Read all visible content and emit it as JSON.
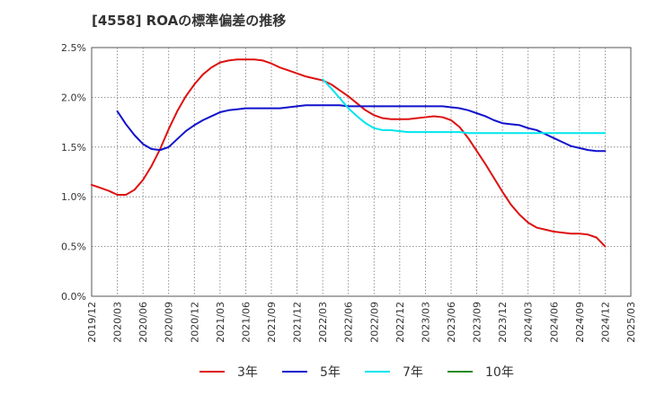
{
  "chart_data": {
    "type": "line",
    "title": "[4558]  ROAの標準偏差の推移",
    "xlabel": "",
    "ylabel": "",
    "ylim": [
      0,
      0.025
    ],
    "grid": true,
    "legend_position": "bottom",
    "y_ticks": [
      0,
      0.005,
      0.01,
      0.015,
      0.02,
      0.025
    ],
    "y_tick_labels": [
      "0.0%",
      "0.5%",
      "1.0%",
      "1.5%",
      "2.0%",
      "2.5%"
    ],
    "x_tick_labels": [
      "2019/12",
      "2020/03",
      "2020/06",
      "2020/09",
      "2020/12",
      "2021/03",
      "2021/06",
      "2021/09",
      "2021/12",
      "2022/03",
      "2022/06",
      "2022/09",
      "2022/12",
      "2023/03",
      "2023/06",
      "2023/09",
      "2023/12",
      "2024/03",
      "2024/06",
      "2024/09",
      "2024/12",
      "2025/03"
    ],
    "series": [
      {
        "name": "3年",
        "color": "#dd1111",
        "points": [
          [
            "2019/12",
            0.0112
          ],
          [
            "2020/01",
            0.0109
          ],
          [
            "2020/02",
            0.0106
          ],
          [
            "2020/03",
            0.0102
          ],
          [
            "2020/04",
            0.0102
          ],
          [
            "2020/05",
            0.0107
          ],
          [
            "2020/06",
            0.0117
          ],
          [
            "2020/07",
            0.0131
          ],
          [
            "2020/08",
            0.0148
          ],
          [
            "2020/09",
            0.0168
          ],
          [
            "2020/10",
            0.0186
          ],
          [
            "2020/11",
            0.0201
          ],
          [
            "2020/12",
            0.0213
          ],
          [
            "2021/01",
            0.0223
          ],
          [
            "2021/02",
            0.023
          ],
          [
            "2021/03",
            0.0235
          ],
          [
            "2021/04",
            0.0237
          ],
          [
            "2021/05",
            0.0238
          ],
          [
            "2021/06",
            0.0238
          ],
          [
            "2021/07",
            0.0238
          ],
          [
            "2021/08",
            0.0237
          ],
          [
            "2021/09",
            0.0234
          ],
          [
            "2021/10",
            0.023
          ],
          [
            "2021/11",
            0.0227
          ],
          [
            "2021/12",
            0.0224
          ],
          [
            "2022/01",
            0.0221
          ],
          [
            "2022/02",
            0.0219
          ],
          [
            "2022/03",
            0.0217
          ],
          [
            "2022/04",
            0.0213
          ],
          [
            "2022/05",
            0.0207
          ],
          [
            "2022/06",
            0.0201
          ],
          [
            "2022/07",
            0.0194
          ],
          [
            "2022/08",
            0.0187
          ],
          [
            "2022/09",
            0.0182
          ],
          [
            "2022/10",
            0.0179
          ],
          [
            "2022/11",
            0.0178
          ],
          [
            "2022/12",
            0.0178
          ],
          [
            "2023/01",
            0.0178
          ],
          [
            "2023/02",
            0.0179
          ],
          [
            "2023/03",
            0.018
          ],
          [
            "2023/04",
            0.0181
          ],
          [
            "2023/05",
            0.018
          ],
          [
            "2023/06",
            0.0177
          ],
          [
            "2023/07",
            0.017
          ],
          [
            "2023/08",
            0.0159
          ],
          [
            "2023/09",
            0.0146
          ],
          [
            "2023/10",
            0.0133
          ],
          [
            "2023/11",
            0.0119
          ],
          [
            "2023/12",
            0.0105
          ],
          [
            "2024/01",
            0.0092
          ],
          [
            "2024/02",
            0.0082
          ],
          [
            "2024/03",
            0.0074
          ],
          [
            "2024/04",
            0.0069
          ],
          [
            "2024/05",
            0.0067
          ],
          [
            "2024/06",
            0.0065
          ],
          [
            "2024/07",
            0.0064
          ],
          [
            "2024/08",
            0.0063
          ],
          [
            "2024/09",
            0.0063
          ],
          [
            "2024/10",
            0.0062
          ],
          [
            "2024/11",
            0.0059
          ],
          [
            "2024/12",
            0.005
          ]
        ]
      },
      {
        "name": "5年",
        "color": "#1111cc",
        "points": [
          [
            "2020/03",
            0.0186
          ],
          [
            "2020/04",
            0.0173
          ],
          [
            "2020/05",
            0.0162
          ],
          [
            "2020/06",
            0.0153
          ],
          [
            "2020/07",
            0.0148
          ],
          [
            "2020/08",
            0.0147
          ],
          [
            "2020/09",
            0.015
          ],
          [
            "2020/10",
            0.0158
          ],
          [
            "2020/11",
            0.0166
          ],
          [
            "2020/12",
            0.0172
          ],
          [
            "2021/01",
            0.0177
          ],
          [
            "2021/02",
            0.0181
          ],
          [
            "2021/03",
            0.0185
          ],
          [
            "2021/04",
            0.0187
          ],
          [
            "2021/05",
            0.0188
          ],
          [
            "2021/06",
            0.0189
          ],
          [
            "2021/07",
            0.0189
          ],
          [
            "2021/08",
            0.0189
          ],
          [
            "2021/09",
            0.0189
          ],
          [
            "2021/10",
            0.0189
          ],
          [
            "2021/11",
            0.019
          ],
          [
            "2021/12",
            0.0191
          ],
          [
            "2022/01",
            0.0192
          ],
          [
            "2022/02",
            0.0192
          ],
          [
            "2022/03",
            0.0192
          ],
          [
            "2022/04",
            0.0192
          ],
          [
            "2022/05",
            0.0192
          ],
          [
            "2022/06",
            0.0191
          ],
          [
            "2022/07",
            0.0191
          ],
          [
            "2022/08",
            0.0191
          ],
          [
            "2022/09",
            0.0191
          ],
          [
            "2022/10",
            0.0191
          ],
          [
            "2022/11",
            0.0191
          ],
          [
            "2022/12",
            0.0191
          ],
          [
            "2023/01",
            0.0191
          ],
          [
            "2023/02",
            0.0191
          ],
          [
            "2023/03",
            0.0191
          ],
          [
            "2023/04",
            0.0191
          ],
          [
            "2023/05",
            0.0191
          ],
          [
            "2023/06",
            0.019
          ],
          [
            "2023/07",
            0.0189
          ],
          [
            "2023/08",
            0.0187
          ],
          [
            "2023/09",
            0.0184
          ],
          [
            "2023/10",
            0.0181
          ],
          [
            "2023/11",
            0.0177
          ],
          [
            "2023/12",
            0.0174
          ],
          [
            "2024/01",
            0.0173
          ],
          [
            "2024/02",
            0.0172
          ],
          [
            "2024/03",
            0.0169
          ],
          [
            "2024/04",
            0.0167
          ],
          [
            "2024/05",
            0.0163
          ],
          [
            "2024/06",
            0.0159
          ],
          [
            "2024/07",
            0.0155
          ],
          [
            "2024/08",
            0.0151
          ],
          [
            "2024/09",
            0.0149
          ],
          [
            "2024/10",
            0.0147
          ],
          [
            "2024/11",
            0.0146
          ],
          [
            "2024/12",
            0.0146
          ]
        ]
      },
      {
        "name": "7年",
        "color": "#00e5ee",
        "points": [
          [
            "2022/03",
            0.0218
          ],
          [
            "2022/04",
            0.0209
          ],
          [
            "2022/05",
            0.0199
          ],
          [
            "2022/06",
            0.0189
          ],
          [
            "2022/07",
            0.0181
          ],
          [
            "2022/08",
            0.0174
          ],
          [
            "2022/09",
            0.0169
          ],
          [
            "2022/10",
            0.0167
          ],
          [
            "2022/11",
            0.0167
          ],
          [
            "2022/12",
            0.0166
          ],
          [
            "2023/01",
            0.0165
          ],
          [
            "2023/02",
            0.0165
          ],
          [
            "2023/03",
            0.0165
          ],
          [
            "2023/04",
            0.0165
          ],
          [
            "2023/05",
            0.0165
          ],
          [
            "2023/06",
            0.0165
          ],
          [
            "2023/07",
            0.0165
          ],
          [
            "2023/08",
            0.0164
          ],
          [
            "2023/09",
            0.0164
          ],
          [
            "2023/10",
            0.0164
          ],
          [
            "2023/11",
            0.0164
          ],
          [
            "2023/12",
            0.0164
          ],
          [
            "2024/01",
            0.0164
          ],
          [
            "2024/02",
            0.0164
          ],
          [
            "2024/03",
            0.0164
          ],
          [
            "2024/04",
            0.0164
          ],
          [
            "2024/05",
            0.0164
          ],
          [
            "2024/06",
            0.0164
          ],
          [
            "2024/07",
            0.0164
          ],
          [
            "2024/08",
            0.0164
          ],
          [
            "2024/09",
            0.0164
          ],
          [
            "2024/10",
            0.0164
          ],
          [
            "2024/11",
            0.0164
          ],
          [
            "2024/12",
            0.0164
          ]
        ]
      },
      {
        "name": "10年",
        "color": "#228b22",
        "points": []
      }
    ]
  }
}
